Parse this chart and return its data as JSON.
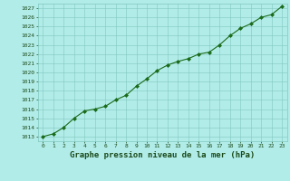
{
  "x": [
    0,
    1,
    2,
    3,
    4,
    5,
    6,
    7,
    8,
    9,
    10,
    11,
    12,
    13,
    14,
    15,
    16,
    17,
    18,
    19,
    20,
    21,
    22,
    23
  ],
  "y": [
    1013.0,
    1013.3,
    1014.0,
    1015.0,
    1015.8,
    1016.0,
    1016.3,
    1017.0,
    1017.5,
    1018.5,
    1019.3,
    1020.2,
    1020.8,
    1021.2,
    1021.5,
    1022.0,
    1022.2,
    1023.0,
    1024.0,
    1024.8,
    1025.3,
    1026.0,
    1026.3,
    1027.2
  ],
  "line_color": "#1a6b1a",
  "marker": "D",
  "marker_size": 2.0,
  "bg_color": "#b2ece8",
  "grid_color": "#80c8c0",
  "title": "Graphe pression niveau de la mer (hPa)",
  "title_fontsize": 6.5,
  "title_color": "#1a4a1a",
  "tick_label_color": "#1a4a1a",
  "ylim": [
    1013,
    1027
  ],
  "xlim": [
    -0.5,
    23.5
  ],
  "xtick_labels": [
    "0",
    "1",
    "2",
    "3",
    "4",
    "5",
    "6",
    "7",
    "8",
    "9",
    "10",
    "11",
    "12",
    "13",
    "14",
    "15",
    "16",
    "17",
    "18",
    "19",
    "20",
    "21",
    "22",
    "23"
  ]
}
